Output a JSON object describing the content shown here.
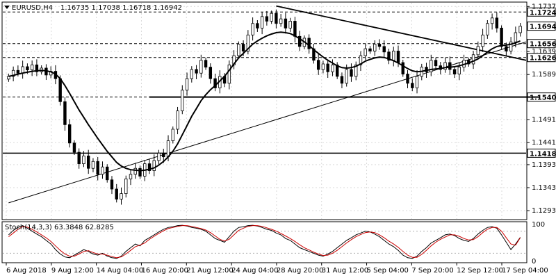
{
  "header": {
    "symbol": "EURUSD,H4",
    "values": "1.16735 1.17038 1.16718 1.16942"
  },
  "stoch_header": {
    "label": "Stoch(14,3,3) 63.3848 62.8285"
  },
  "colors": {
    "candle": "#000000",
    "ma": "#000000",
    "stoch_main": "#000000",
    "stoch_signal": "#cc0000",
    "grid": "#d9d9d9",
    "level_box_fill": "#ffffff",
    "current_box_fill": "#ffffff"
  },
  "chart_data": [
    {
      "type": "candlestick",
      "title": "",
      "timeframe": "H4",
      "x_labels": [
        "6 Aug 2018",
        "9 Aug 12:00",
        "14 Aug 04:00",
        "16 Aug 20:00",
        "21 Aug 12:00",
        "24 Aug 04:00",
        "28 Aug 20:00",
        "31 Aug 12:00",
        "5 Sep 04:00",
        "7 Sep 20:00",
        "12 Sep 12:00",
        "17 Sep 04:00"
      ],
      "y_ticks": [
        "1.17370",
        "1.16390",
        "1.15890",
        "1.14910",
        "1.14410",
        "1.13930",
        "1.13430",
        "1.12930"
      ],
      "ylim": [
        1.1275,
        1.1745
      ],
      "current_price": "1.16942",
      "levels": [
        {
          "value": 1.17249,
          "label": "1.17249",
          "style": "dashed"
        },
        {
          "value": 1.16563,
          "label": "1.16563",
          "style": "dashed"
        },
        {
          "value": 1.1626,
          "label": "1.16260",
          "style": "dashed"
        },
        {
          "value": 1.154,
          "label": "1.15400",
          "style": "dashed"
        },
        {
          "value": 1.1418,
          "label": "1.14180",
          "style": "solid"
        }
      ],
      "trendlines": [
        {
          "from_index": 0,
          "from_price": 1.131,
          "to_index": 130,
          "to_price": 1.166,
          "name": "ascending trendline"
        },
        {
          "from_index": 57,
          "from_price": 1.1738,
          "to_index": 118,
          "to_price": 1.162,
          "name": "descending trendline"
        }
      ],
      "support_segment": {
        "from_index": 30,
        "to_index": 113,
        "price": 1.154
      },
      "closes": [
        1.1585,
        1.1598,
        1.1592,
        1.1606,
        1.1599,
        1.161,
        1.1595,
        1.1603,
        1.1588,
        1.1596,
        1.158,
        1.153,
        1.148,
        1.144,
        1.142,
        1.1395,
        1.1412,
        1.1385,
        1.14,
        1.1372,
        1.1388,
        1.136,
        1.134,
        1.1318,
        1.133,
        1.1362,
        1.1372,
        1.1385,
        1.1368,
        1.1395,
        1.138,
        1.1402,
        1.1418,
        1.141,
        1.1445,
        1.147,
        1.151,
        1.1555,
        1.158,
        1.16,
        1.1592,
        1.162,
        1.1605,
        1.158,
        1.156,
        1.1585,
        1.157,
        1.161,
        1.163,
        1.1655,
        1.164,
        1.1675,
        1.17,
        1.169,
        1.1715,
        1.1705,
        1.1722,
        1.17,
        1.171,
        1.169,
        1.1705,
        1.1672,
        1.165,
        1.1668,
        1.1645,
        1.162,
        1.16,
        1.1612,
        1.1595,
        1.161,
        1.1585,
        1.157,
        1.16,
        1.1585,
        1.161,
        1.163,
        1.1645,
        1.164,
        1.1655,
        1.165,
        1.1638,
        1.162,
        1.164,
        1.1615,
        1.159,
        1.157,
        1.156,
        1.1585,
        1.1605,
        1.1595,
        1.162,
        1.1608,
        1.16,
        1.1615,
        1.16,
        1.159,
        1.1605,
        1.162,
        1.1612,
        1.1632,
        1.165,
        1.1675,
        1.17,
        1.1712,
        1.169,
        1.165,
        1.164,
        1.166,
        1.168,
        1.1694
      ],
      "moving_average": {
        "period": "20",
        "values": [
          1.1585,
          1.1587,
          1.159,
          1.1592,
          1.1594,
          1.1596,
          1.1597,
          1.1598,
          1.1597,
          1.1595,
          1.159,
          1.158,
          1.1565,
          1.1548,
          1.153,
          1.1512,
          1.1496,
          1.148,
          1.1465,
          1.145,
          1.1436,
          1.1422,
          1.141,
          1.1398,
          1.139,
          1.1385,
          1.1382,
          1.1381,
          1.138,
          1.1381,
          1.1383,
          1.1386,
          1.1392,
          1.14,
          1.141,
          1.1422,
          1.1438,
          1.1458,
          1.1478,
          1.1498,
          1.1515,
          1.1532,
          1.1545,
          1.1556,
          1.1565,
          1.1575,
          1.1585,
          1.1598,
          1.1612,
          1.1625,
          1.1635,
          1.1645,
          1.1655,
          1.1662,
          1.1668,
          1.1673,
          1.1677,
          1.168,
          1.1681,
          1.168,
          1.1678,
          1.1673,
          1.1667,
          1.166,
          1.1652,
          1.1643,
          1.1635,
          1.1627,
          1.162,
          1.1614,
          1.1608,
          1.1604,
          1.1603,
          1.1604,
          1.1607,
          1.1612,
          1.1618,
          1.1622,
          1.1625,
          1.1627,
          1.1626,
          1.1623,
          1.1619,
          1.1614,
          1.1608,
          1.1602,
          1.1597,
          1.1595,
          1.1596,
          1.1598,
          1.16,
          1.1601,
          1.1602,
          1.1604,
          1.1605,
          1.1606,
          1.1608,
          1.1611,
          1.1614,
          1.1618,
          1.1623,
          1.163,
          1.1638,
          1.1645,
          1.165,
          1.1652,
          1.1653,
          1.1655,
          1.1658,
          1.1662
        ]
      }
    },
    {
      "type": "line",
      "title": "Stoch(14,3,3)",
      "y_ticks": [
        "100",
        "0"
      ],
      "ylim": [
        0,
        100
      ],
      "levels": [
        80,
        20
      ],
      "series": [
        {
          "name": "main",
          "values": [
            70,
            82,
            90,
            95,
            88,
            80,
            72,
            65,
            55,
            45,
            30,
            18,
            10,
            8,
            15,
            22,
            30,
            25,
            18,
            15,
            20,
            12,
            8,
            6,
            12,
            25,
            35,
            45,
            40,
            55,
            62,
            70,
            78,
            85,
            90,
            92,
            95,
            96,
            94,
            90,
            88,
            85,
            80,
            70,
            60,
            55,
            50,
            65,
            80,
            90,
            92,
            95,
            96,
            94,
            90,
            85,
            82,
            75,
            70,
            60,
            55,
            45,
            35,
            30,
            25,
            20,
            15,
            12,
            18,
            25,
            35,
            45,
            55,
            62,
            70,
            75,
            80,
            78,
            72,
            65,
            55,
            45,
            38,
            28,
            15,
            8,
            6,
            12,
            25,
            35,
            48,
            55,
            62,
            70,
            72,
            68,
            60,
            55,
            52,
            60,
            72,
            82,
            90,
            92,
            88,
            70,
            50,
            30,
            45,
            63
          ]
        },
        {
          "name": "signal",
          "values": [
            65,
            75,
            85,
            92,
            91,
            85,
            78,
            70,
            62,
            52,
            40,
            28,
            18,
            12,
            12,
            18,
            25,
            27,
            22,
            18,
            18,
            15,
            11,
            8,
            10,
            18,
            28,
            38,
            42,
            48,
            58,
            66,
            74,
            81,
            87,
            90,
            93,
            95,
            95,
            93,
            90,
            87,
            83,
            76,
            67,
            58,
            53,
            58,
            70,
            82,
            88,
            93,
            95,
            95,
            93,
            89,
            85,
            80,
            74,
            67,
            60,
            52,
            43,
            35,
            29,
            23,
            18,
            14,
            15,
            20,
            28,
            38,
            48,
            57,
            65,
            71,
            76,
            78,
            76,
            70,
            62,
            53,
            45,
            36,
            25,
            15,
            9,
            9,
            17,
            28,
            40,
            50,
            58,
            64,
            70,
            70,
            66,
            60,
            56,
            57,
            65,
            76,
            85,
            90,
            90,
            80,
            62,
            45,
            42,
            62
          ]
        }
      ]
    }
  ]
}
